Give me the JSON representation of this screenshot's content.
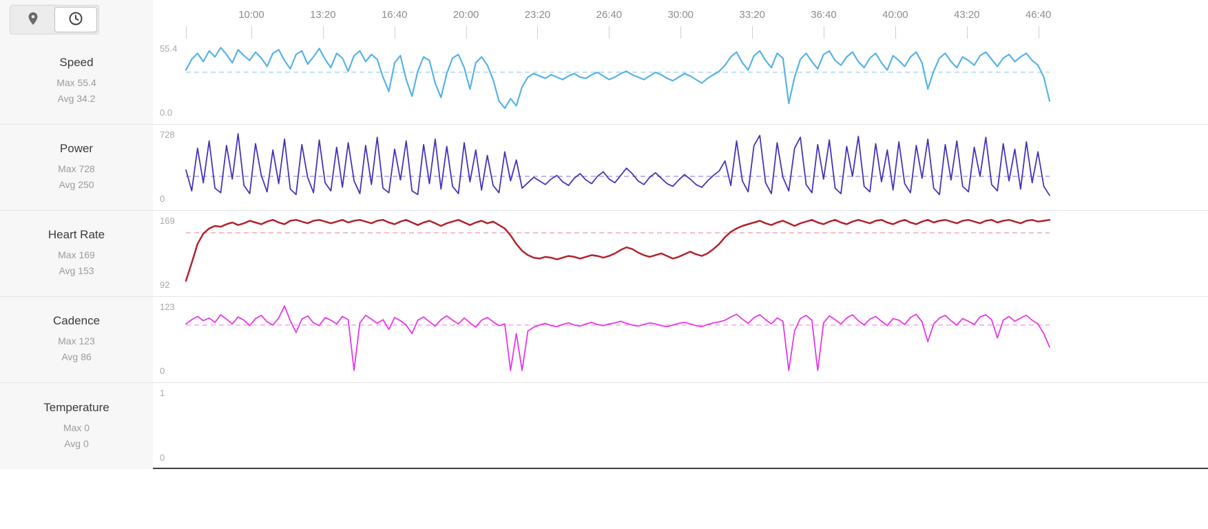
{
  "header": {
    "toolbar": {
      "buttons": [
        {
          "icon": "location-pin-icon",
          "selected": false
        },
        {
          "icon": "clock-icon",
          "selected": true
        }
      ]
    },
    "time_axis": {
      "ticks": [
        "10:00",
        "13:20",
        "16:40",
        "20:00",
        "23:20",
        "26:40",
        "30:00",
        "33:20",
        "36:40",
        "40:00",
        "43:20",
        "46:40"
      ]
    }
  },
  "chart_data": [
    {
      "type": "line",
      "label": "Speed",
      "max_label": "Max 55.4",
      "avg_label": "Avg 34.2",
      "max": 55.4,
      "avg": 34.2,
      "ylim": [
        0,
        55.4
      ],
      "y_max_label": "55.4",
      "y_min_label": "0.0",
      "color": "#56b3e6",
      "avg_color": "#a9d7f2",
      "stroke_width": 2.2,
      "x_extent": 0.845,
      "avg_line": true,
      "values": [
        36,
        45,
        50,
        43,
        52,
        47,
        55.4,
        49,
        42,
        53,
        48,
        44,
        51,
        46,
        39,
        50,
        53,
        44,
        37,
        49,
        52,
        41,
        47,
        54,
        45,
        38,
        50,
        46,
        35,
        48,
        52,
        43,
        49,
        45,
        30,
        18,
        42,
        48,
        28,
        14,
        35,
        47,
        44,
        25,
        13,
        33,
        46,
        49,
        38,
        20,
        42,
        47,
        40,
        28,
        10,
        4,
        12,
        6,
        22,
        30,
        33,
        31,
        29,
        32,
        30,
        28,
        31,
        33,
        30,
        29,
        32,
        34,
        31,
        28,
        30,
        33,
        35,
        32,
        30,
        28,
        31,
        34,
        32,
        29,
        27,
        30,
        33,
        31,
        28,
        25,
        29,
        32,
        35,
        40,
        47,
        51,
        42,
        36,
        48,
        52,
        44,
        38,
        50,
        46,
        8,
        30,
        45,
        50,
        43,
        37,
        49,
        52,
        44,
        40,
        47,
        51,
        43,
        38,
        46,
        50,
        42,
        36,
        48,
        44,
        39,
        47,
        51,
        42,
        20,
        35,
        46,
        50,
        43,
        38,
        47,
        44,
        40,
        48,
        51,
        45,
        39,
        46,
        49,
        43,
        47,
        50,
        44,
        40,
        30,
        10
      ]
    },
    {
      "type": "line",
      "label": "Power",
      "max_label": "Max 728",
      "avg_label": "Avg 250",
      "max": 728,
      "avg": 250,
      "ylim": [
        0,
        728
      ],
      "y_max_label": "728",
      "y_min_label": "0",
      "color": "#4434b8",
      "avg_color": "#a9a0e8",
      "stroke_width": 1.8,
      "x_extent": 0.845,
      "avg_line": true,
      "values": [
        320,
        90,
        560,
        180,
        640,
        120,
        70,
        590,
        220,
        728,
        150,
        60,
        610,
        260,
        80,
        540,
        170,
        660,
        110,
        50,
        600,
        240,
        70,
        650,
        180,
        90,
        570,
        130,
        620,
        200,
        60,
        590,
        160,
        680,
        120,
        70,
        550,
        210,
        640,
        90,
        50,
        600,
        170,
        660,
        110,
        580,
        140,
        60,
        620,
        190,
        540,
        100,
        480,
        150,
        70,
        520,
        200,
        430,
        120,
        180,
        240,
        200,
        160,
        220,
        260,
        190,
        150,
        230,
        280,
        210,
        170,
        250,
        300,
        220,
        180,
        260,
        340,
        280,
        200,
        160,
        240,
        290,
        230,
        170,
        140,
        210,
        270,
        220,
        160,
        130,
        200,
        260,
        310,
        420,
        150,
        640,
        200,
        80,
        590,
        700,
        180,
        60,
        620,
        240,
        90,
        560,
        680,
        160,
        70,
        600,
        220,
        650,
        120,
        60,
        580,
        250,
        690,
        140,
        80,
        610,
        190,
        540,
        100,
        630,
        170,
        70,
        590,
        230,
        660,
        120,
        50,
        600,
        210,
        640,
        140,
        80,
        570,
        250,
        680,
        160,
        90,
        610,
        200,
        550,
        110,
        630,
        180,
        520,
        140,
        40
      ]
    },
    {
      "type": "line",
      "label": "Heart Rate",
      "max_label": "Max 169",
      "avg_label": "Avg 153",
      "max": 169,
      "avg": 153,
      "ylim": [
        92,
        169
      ],
      "y_max_label": "169",
      "y_min_label": "92",
      "color": "#b2222c",
      "avg_color": "#efa8b8",
      "stroke_width": 2.5,
      "x_extent": 0.845,
      "avg_line": true,
      "values": [
        97,
        118,
        140,
        152,
        158,
        161,
        160,
        163,
        165,
        162,
        164,
        167,
        165,
        163,
        166,
        168,
        165,
        163,
        167,
        169,
        166,
        164,
        167,
        169,
        166,
        164,
        166,
        168,
        165,
        167,
        169,
        166,
        164,
        167,
        168,
        165,
        163,
        166,
        168,
        165,
        162,
        165,
        167,
        164,
        161,
        164,
        166,
        168,
        165,
        162,
        165,
        167,
        164,
        166,
        162,
        158,
        150,
        140,
        132,
        127,
        124,
        123,
        125,
        124,
        122,
        124,
        126,
        125,
        123,
        125,
        127,
        126,
        124,
        126,
        129,
        133,
        136,
        134,
        130,
        127,
        125,
        127,
        129,
        126,
        123,
        125,
        128,
        131,
        128,
        126,
        129,
        134,
        140,
        148,
        154,
        158,
        161,
        163,
        165,
        167,
        164,
        162,
        165,
        167,
        164,
        161,
        164,
        166,
        168,
        165,
        163,
        166,
        168,
        165,
        163,
        166,
        169,
        166,
        164,
        167,
        168,
        165,
        163,
        166,
        168,
        165,
        163,
        166,
        168,
        165,
        167,
        169,
        166,
        164,
        167,
        169,
        166,
        164,
        167,
        168,
        165,
        167,
        169,
        166,
        164,
        167,
        168,
        166,
        167,
        168
      ]
    },
    {
      "type": "line",
      "label": "Cadence",
      "max_label": "Max 123",
      "avg_label": "Avg 86",
      "max": 123,
      "avg": 86,
      "ylim": [
        0,
        123
      ],
      "y_max_label": "123",
      "y_min_label": "0",
      "color": "#e637e6",
      "avg_color": "#f2a8ee",
      "stroke_width": 1.8,
      "x_extent": 0.845,
      "avg_line": true,
      "values": [
        88,
        96,
        102,
        94,
        99,
        91,
        105,
        97,
        88,
        101,
        95,
        85,
        98,
        104,
        92,
        86,
        99,
        123,
        94,
        72,
        97,
        103,
        90,
        85,
        100,
        95,
        88,
        102,
        96,
        0,
        90,
        104,
        97,
        89,
        96,
        78,
        100,
        94,
        86,
        70,
        95,
        101,
        92,
        84,
        96,
        103,
        95,
        88,
        99,
        90,
        82,
        95,
        100,
        92,
        85,
        88,
        0,
        70,
        0,
        75,
        82,
        86,
        89,
        85,
        83,
        87,
        90,
        86,
        84,
        88,
        91,
        87,
        85,
        88,
        90,
        93,
        89,
        86,
        84,
        87,
        90,
        88,
        85,
        83,
        86,
        89,
        91,
        88,
        85,
        83,
        87,
        90,
        92,
        95,
        101,
        106,
        97,
        89,
        100,
        105,
        96,
        88,
        99,
        93,
        0,
        75,
        98,
        104,
        95,
        0,
        90,
        103,
        96,
        88,
        99,
        105,
        94,
        86,
        97,
        102,
        93,
        85,
        98,
        95,
        87,
        100,
        106,
        92,
        55,
        88,
        99,
        104,
        94,
        86,
        98,
        93,
        87,
        101,
        105,
        96,
        62,
        95,
        102,
        93,
        99,
        104,
        95,
        88,
        70,
        45
      ]
    },
    {
      "type": "line",
      "label": "Temperature",
      "max_label": "Max 0",
      "avg_label": "Avg 0",
      "max": 0,
      "avg": 0,
      "ylim": [
        0,
        1
      ],
      "y_max_label": "1",
      "y_min_label": "0",
      "color": "#3f3f3f",
      "avg_color": "#cccccc",
      "stroke_width": 2,
      "x_extent": 0.845,
      "avg_line": false,
      "values": []
    }
  ]
}
